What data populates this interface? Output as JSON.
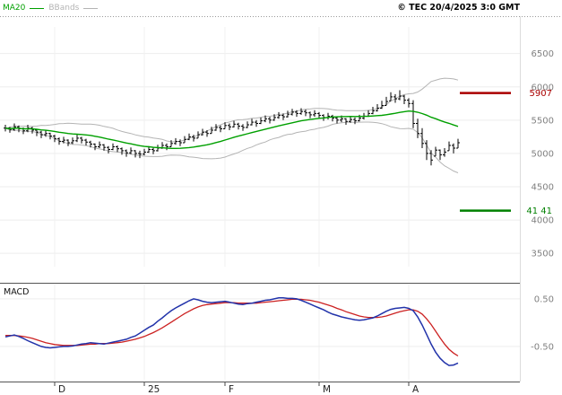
{
  "header": {
    "copyright": "© TEC 20/4/2025 3:0 GMT"
  },
  "legend": {
    "ma20_label": "MA20",
    "bbands_label": "BBands"
  },
  "macd": {
    "label": "MACD"
  },
  "chart_data": {
    "type": "candlestick",
    "title": "",
    "colors": {
      "candle": "#000000",
      "ma20": "#00a000",
      "bbands": "#b4b4b4",
      "macd": "#2233aa",
      "signal": "#cc2222",
      "resistance": "#aa0000",
      "support": "#008000",
      "axis_text": "#808080",
      "month_text": "#222222"
    },
    "price_panel": {
      "y_axis": {
        "ticks": [
          6500,
          6000,
          5500,
          5000,
          4500,
          4000,
          3500
        ],
        "range": [
          3300,
          6900
        ]
      },
      "overlays": {
        "ma20_period": 20,
        "bbands_period": 20,
        "bbands_stddev": 2
      },
      "levels": [
        {
          "value": 5907,
          "label": "5907",
          "color": "#aa0000"
        },
        {
          "value": 4141,
          "label": "41 41",
          "color": "#008000"
        }
      ],
      "candles_hlc": [
        [
          5430,
          5330,
          5380
        ],
        [
          5400,
          5310,
          5360
        ],
        [
          5450,
          5340,
          5400
        ],
        [
          5420,
          5320,
          5370
        ],
        [
          5390,
          5290,
          5340
        ],
        [
          5430,
          5320,
          5380
        ],
        [
          5400,
          5300,
          5350
        ],
        [
          5370,
          5260,
          5320
        ],
        [
          5340,
          5230,
          5280
        ],
        [
          5350,
          5250,
          5300
        ],
        [
          5310,
          5210,
          5260
        ],
        [
          5280,
          5170,
          5220
        ],
        [
          5240,
          5130,
          5180
        ],
        [
          5250,
          5150,
          5200
        ],
        [
          5210,
          5110,
          5160
        ],
        [
          5240,
          5140,
          5190
        ],
        [
          5280,
          5170,
          5230
        ],
        [
          5250,
          5150,
          5200
        ],
        [
          5220,
          5120,
          5170
        ],
        [
          5190,
          5090,
          5140
        ],
        [
          5150,
          5050,
          5100
        ],
        [
          5180,
          5080,
          5130
        ],
        [
          5140,
          5040,
          5090
        ],
        [
          5110,
          5000,
          5060
        ],
        [
          5150,
          5050,
          5100
        ],
        [
          5120,
          5020,
          5070
        ],
        [
          5090,
          4980,
          5040
        ],
        [
          5060,
          4950,
          5010
        ],
        [
          5090,
          4990,
          5040
        ],
        [
          5050,
          4940,
          5000
        ],
        [
          5040,
          4930,
          4990
        ],
        [
          5070,
          4970,
          5020
        ],
        [
          5110,
          5010,
          5060
        ],
        [
          5090,
          4990,
          5040
        ],
        [
          5130,
          5030,
          5080
        ],
        [
          5170,
          5070,
          5120
        ],
        [
          5150,
          5050,
          5100
        ],
        [
          5200,
          5100,
          5150
        ],
        [
          5230,
          5130,
          5180
        ],
        [
          5210,
          5110,
          5160
        ],
        [
          5260,
          5160,
          5210
        ],
        [
          5300,
          5200,
          5250
        ],
        [
          5280,
          5180,
          5230
        ],
        [
          5330,
          5230,
          5280
        ],
        [
          5370,
          5270,
          5320
        ],
        [
          5350,
          5250,
          5300
        ],
        [
          5400,
          5300,
          5350
        ],
        [
          5440,
          5340,
          5390
        ],
        [
          5420,
          5320,
          5370
        ],
        [
          5470,
          5370,
          5420
        ],
        [
          5450,
          5350,
          5400
        ],
        [
          5490,
          5390,
          5440
        ],
        [
          5460,
          5360,
          5410
        ],
        [
          5440,
          5340,
          5390
        ],
        [
          5480,
          5380,
          5430
        ],
        [
          5520,
          5420,
          5470
        ],
        [
          5500,
          5400,
          5450
        ],
        [
          5540,
          5440,
          5490
        ],
        [
          5570,
          5470,
          5520
        ],
        [
          5550,
          5450,
          5500
        ],
        [
          5590,
          5490,
          5540
        ],
        [
          5620,
          5520,
          5570
        ],
        [
          5600,
          5500,
          5550
        ],
        [
          5640,
          5540,
          5590
        ],
        [
          5670,
          5570,
          5620
        ],
        [
          5650,
          5550,
          5600
        ],
        [
          5680,
          5580,
          5630
        ],
        [
          5660,
          5560,
          5610
        ],
        [
          5630,
          5530,
          5580
        ],
        [
          5650,
          5550,
          5600
        ],
        [
          5620,
          5520,
          5570
        ],
        [
          5590,
          5490,
          5540
        ],
        [
          5610,
          5510,
          5560
        ],
        [
          5580,
          5480,
          5530
        ],
        [
          5550,
          5450,
          5500
        ],
        [
          5570,
          5470,
          5520
        ],
        [
          5530,
          5430,
          5480
        ],
        [
          5560,
          5460,
          5510
        ],
        [
          5540,
          5440,
          5490
        ],
        [
          5580,
          5480,
          5530
        ],
        [
          5610,
          5510,
          5560
        ],
        [
          5650,
          5550,
          5600
        ],
        [
          5700,
          5590,
          5640
        ],
        [
          5740,
          5630,
          5680
        ],
        [
          5790,
          5670,
          5720
        ],
        [
          5850,
          5720,
          5780
        ],
        [
          5920,
          5790,
          5850
        ],
        [
          5890,
          5760,
          5820
        ],
        [
          5950,
          5800,
          5860
        ],
        [
          5880,
          5740,
          5800
        ],
        [
          5830,
          5690,
          5750
        ],
        [
          5800,
          5380,
          5450
        ],
        [
          5520,
          5230,
          5300
        ],
        [
          5380,
          5080,
          5150
        ],
        [
          5200,
          4900,
          5000
        ],
        [
          5050,
          4820,
          4900
        ],
        [
          5100,
          4960,
          5050
        ],
        [
          5060,
          4900,
          4980
        ],
        [
          5080,
          4950,
          5020
        ],
        [
          5180,
          5040,
          5120
        ],
        [
          5150,
          5000,
          5080
        ],
        [
          5220,
          5080,
          5160
        ]
      ]
    },
    "macd_panel": {
      "y_axis": {
        "ticks": [
          {
            "value": 0.5,
            "label": "0.50"
          },
          {
            "value": -0.5,
            "label": "-0.50"
          }
        ],
        "range": [
          -1.2,
          0.8
        ]
      },
      "macd_line": [
        -0.3,
        -0.28,
        -0.26,
        -0.29,
        -0.33,
        -0.38,
        -0.42,
        -0.46,
        -0.5,
        -0.52,
        -0.53,
        -0.52,
        -0.51,
        -0.5,
        -0.5,
        -0.49,
        -0.47,
        -0.45,
        -0.44,
        -0.42,
        -0.43,
        -0.44,
        -0.45,
        -0.43,
        -0.41,
        -0.39,
        -0.37,
        -0.35,
        -0.31,
        -0.28,
        -0.22,
        -0.16,
        -0.1,
        -0.05,
        0.03,
        0.1,
        0.18,
        0.25,
        0.31,
        0.36,
        0.41,
        0.46,
        0.5,
        0.48,
        0.45,
        0.43,
        0.42,
        0.43,
        0.44,
        0.45,
        0.43,
        0.41,
        0.39,
        0.38,
        0.4,
        0.41,
        0.43,
        0.45,
        0.47,
        0.48,
        0.5,
        0.52,
        0.52,
        0.51,
        0.51,
        0.5,
        0.47,
        0.43,
        0.39,
        0.35,
        0.31,
        0.27,
        0.22,
        0.18,
        0.15,
        0.12,
        0.1,
        0.08,
        0.06,
        0.05,
        0.06,
        0.08,
        0.1,
        0.14,
        0.19,
        0.24,
        0.28,
        0.3,
        0.31,
        0.32,
        0.3,
        0.25,
        0.12,
        -0.05,
        -0.25,
        -0.45,
        -0.62,
        -0.75,
        -0.84,
        -0.9,
        -0.89,
        -0.85
      ],
      "signal_line": [
        -0.27,
        -0.27,
        -0.27,
        -0.28,
        -0.29,
        -0.31,
        -0.33,
        -0.36,
        -0.39,
        -0.42,
        -0.44,
        -0.46,
        -0.47,
        -0.48,
        -0.48,
        -0.48,
        -0.48,
        -0.47,
        -0.46,
        -0.45,
        -0.45,
        -0.44,
        -0.44,
        -0.44,
        -0.43,
        -0.42,
        -0.41,
        -0.39,
        -0.37,
        -0.35,
        -0.32,
        -0.29,
        -0.25,
        -0.21,
        -0.16,
        -0.11,
        -0.05,
        0.01,
        0.07,
        0.13,
        0.19,
        0.24,
        0.29,
        0.33,
        0.36,
        0.38,
        0.39,
        0.4,
        0.41,
        0.42,
        0.42,
        0.42,
        0.41,
        0.41,
        0.41,
        0.41,
        0.41,
        0.42,
        0.43,
        0.44,
        0.45,
        0.46,
        0.47,
        0.48,
        0.49,
        0.49,
        0.49,
        0.48,
        0.47,
        0.45,
        0.43,
        0.4,
        0.37,
        0.34,
        0.3,
        0.27,
        0.23,
        0.2,
        0.17,
        0.14,
        0.12,
        0.11,
        0.11,
        0.11,
        0.12,
        0.14,
        0.17,
        0.2,
        0.23,
        0.25,
        0.27,
        0.27,
        0.24,
        0.18,
        0.08,
        -0.04,
        -0.18,
        -0.32,
        -0.45,
        -0.56,
        -0.64,
        -0.7
      ]
    },
    "x_axis": {
      "month_labels": [
        {
          "label": "D",
          "bar": 11
        },
        {
          "label": "25",
          "bar": 31
        },
        {
          "label": "F",
          "bar": 49
        },
        {
          "label": "M",
          "bar": 70
        },
        {
          "label": "A",
          "bar": 90
        }
      ]
    }
  }
}
